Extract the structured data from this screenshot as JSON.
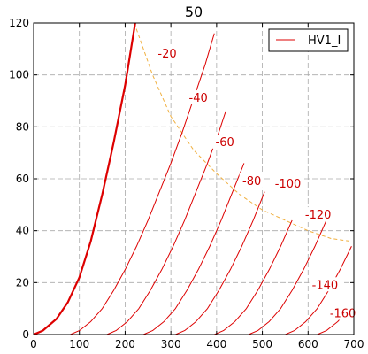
{
  "chart_data": {
    "type": "line",
    "title": "50",
    "xlabel": "",
    "ylabel": "",
    "xlim": [
      0,
      700
    ],
    "ylim": [
      0,
      120
    ],
    "x_ticks": [
      0,
      100,
      200,
      300,
      400,
      500,
      600,
      700
    ],
    "y_ticks": [
      0,
      20,
      40,
      60,
      80,
      100,
      120
    ],
    "grid": true,
    "legend": {
      "position": "top-right",
      "entries": [
        "HV1_I"
      ]
    },
    "colors": {
      "curves": "#dd0000",
      "load_line": "#f0b040",
      "grid": "#aaaaaa"
    },
    "series": [
      {
        "label": "",
        "bold": true,
        "x": [
          0,
          20,
          50,
          75,
          100,
          125,
          150,
          175,
          200,
          222
        ],
        "y": [
          0,
          1.5,
          6,
          12.5,
          22,
          36,
          54,
          74,
          96,
          120
        ]
      },
      {
        "label": "-20",
        "x": [
          80,
          100,
          125,
          150,
          175,
          200,
          225,
          250,
          275,
          300,
          325,
          350,
          375,
          395
        ],
        "y": [
          0,
          1.5,
          5,
          10,
          17,
          25,
          34,
          44,
          55,
          66,
          78,
          91,
          104,
          116
        ]
      },
      {
        "label": "-40",
        "x": [
          160,
          180,
          205,
          230,
          255,
          280,
          305,
          330,
          355,
          380,
          405,
          420
        ],
        "y": [
          0,
          1.5,
          5,
          10,
          17,
          25,
          34,
          44,
          55,
          66,
          78,
          86
        ]
      },
      {
        "label": "-60",
        "x": [
          240,
          260,
          285,
          310,
          335,
          360,
          385,
          410,
          435,
          460
        ],
        "y": [
          0,
          1.5,
          5,
          10,
          17,
          25,
          34,
          44,
          55,
          66
        ]
      },
      {
        "label": "-80",
        "x": [
          310,
          330,
          355,
          380,
          405,
          430,
          455,
          480,
          505
        ],
        "y": [
          0,
          1.5,
          5,
          10,
          17,
          25,
          34,
          44,
          55
        ]
      },
      {
        "label": "-100",
        "x": [
          395,
          415,
          440,
          465,
          490,
          515,
          540,
          565
        ],
        "y": [
          0,
          1.5,
          5,
          10,
          17,
          25,
          34,
          44
        ]
      },
      {
        "label": "-120",
        "x": [
          470,
          490,
          515,
          540,
          565,
          590,
          615,
          640
        ],
        "y": [
          0,
          1.5,
          5,
          10,
          17,
          25,
          34,
          44
        ]
      },
      {
        "label": "-140",
        "x": [
          550,
          570,
          595,
          620,
          645,
          670,
          695
        ],
        "y": [
          0,
          1.5,
          5,
          10,
          17,
          25,
          34
        ]
      },
      {
        "label": "-160",
        "x": [
          620,
          640,
          665,
          690
        ],
        "y": [
          0,
          1.5,
          5,
          10
        ]
      }
    ],
    "load_line": {
      "x": [
        220,
        260,
        300,
        350,
        400,
        450,
        500,
        550,
        600,
        650,
        690
      ],
      "y": [
        120,
        100,
        84,
        71,
        62,
        54,
        48,
        44,
        40,
        37,
        36
      ]
    },
    "curve_labels": [
      {
        "text": "-20",
        "x": 292,
        "y": 108
      },
      {
        "text": "-40",
        "x": 360,
        "y": 91
      },
      {
        "text": "-60",
        "x": 418,
        "y": 74
      },
      {
        "text": "-80",
        "x": 477,
        "y": 59
      },
      {
        "text": "-100",
        "x": 556,
        "y": 58
      },
      {
        "text": "-120",
        "x": 622,
        "y": 46
      },
      {
        "text": "-140",
        "x": 637,
        "y": 19
      },
      {
        "text": "-160",
        "x": 676,
        "y": 8
      }
    ]
  }
}
